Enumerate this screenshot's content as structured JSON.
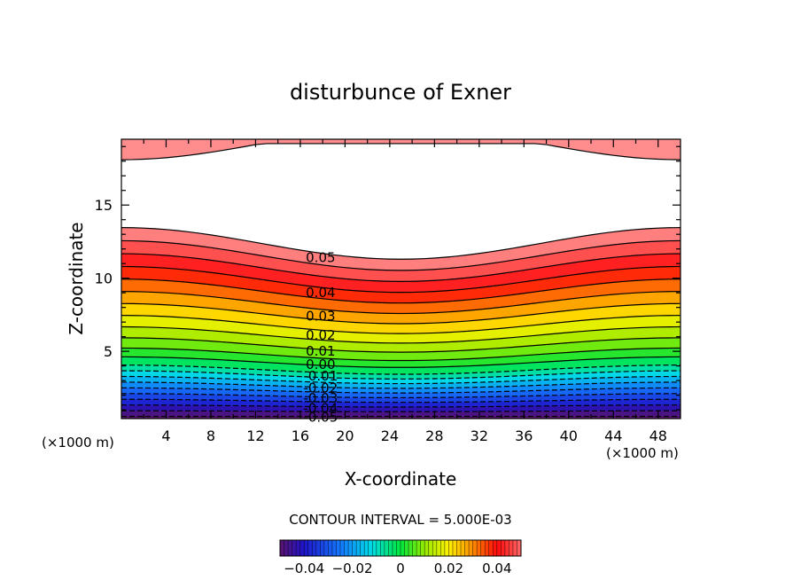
{
  "chart_data": {
    "type": "filled-contour",
    "title": "disturbunce of Exner",
    "xlabel": "X-coordinate",
    "ylabel": "Z-coordinate",
    "x_unit_left": "(×1000 m)",
    "x_unit_right": "(×1000 m)",
    "xlim": [
      0,
      50
    ],
    "ylim": [
      0.4,
      19.5
    ],
    "x_ticks": [
      4,
      8,
      12,
      16,
      20,
      24,
      28,
      32,
      36,
      40,
      44,
      48
    ],
    "y_ticks": [
      5,
      10,
      15
    ],
    "contour_interval_text": "CONTOUR INTERVAL = 5.000E-03",
    "contour_interval": 0.005,
    "value_range": [
      -0.05,
      0.055
    ],
    "profile": {
      "description_x": [
        0,
        4,
        8,
        12,
        16,
        20,
        24,
        28,
        32,
        36,
        40,
        44,
        48,
        50
      ],
      "zero_level_height": [
        4.7,
        4.6,
        4.45,
        4.2,
        4.0,
        3.85,
        3.8,
        3.8,
        3.85,
        4.0,
        4.2,
        4.45,
        4.6,
        4.7
      ]
    },
    "contour_labels": [
      {
        "text": "0.05",
        "x": 17.5,
        "y": 11.4
      },
      {
        "text": "0.04",
        "x": 17.5,
        "y": 9.0
      },
      {
        "text": "0.03",
        "x": 17.5,
        "y": 7.4
      },
      {
        "text": "0.02",
        "x": 17.5,
        "y": 6.1
      },
      {
        "text": "0.01",
        "x": 17.5,
        "y": 5.0
      },
      {
        "text": "0.00",
        "x": 17.5,
        "y": 4.1
      },
      {
        "text": "-0.01",
        "x": 17.5,
        "y": 3.3
      },
      {
        "text": "-0.02",
        "x": 17.5,
        "y": 2.5
      },
      {
        "text": "-0.03",
        "x": 17.5,
        "y": 1.8
      },
      {
        "text": "-0.04",
        "x": 17.5,
        "y": 1.1
      },
      {
        "text": "-0.05",
        "x": 17.5,
        "y": 0.5
      }
    ],
    "colorbar": {
      "range": [
        -0.05,
        0.05
      ],
      "ticks": [
        -0.04,
        -0.02,
        0,
        0.02,
        0.04
      ],
      "tick_labels": [
        "−0.04",
        "−0.02",
        "0",
        "0.02",
        "0.04"
      ]
    }
  }
}
